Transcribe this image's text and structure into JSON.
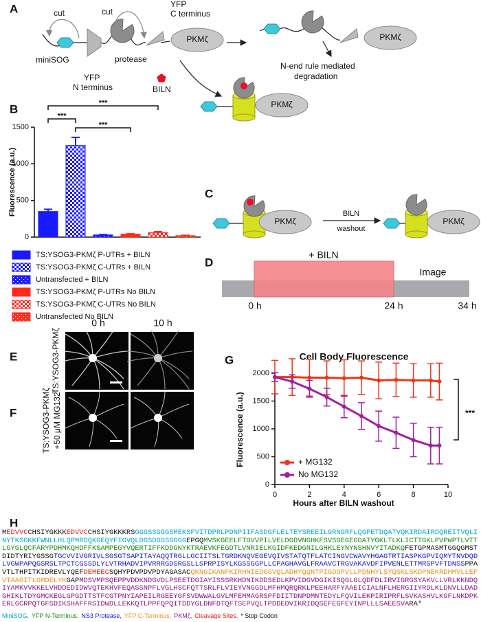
{
  "chart_data": [
    {
      "type": "bar",
      "ylabel": "Fluorescence (a.u.)",
      "ylim": [
        0,
        1500
      ],
      "yticks": [
        0,
        500,
        1000,
        1500
      ],
      "series": [
        {
          "name": "TS:YSOG3-PKMζ P-UTRs + BILN",
          "color": "#1a1aff",
          "pattern": "solid",
          "values": [
            350
          ],
          "errors": [
            30
          ]
        },
        {
          "name": "TS:YSOG3-PKMζ C-UTRs + BILN",
          "color": "#1a1aff",
          "pattern": "checker",
          "values": [
            1250
          ],
          "errors": [
            110
          ]
        },
        {
          "name": "Untransfected + BILN",
          "color": "#1a1aff",
          "pattern": "dots",
          "values": [
            30
          ],
          "errors": [
            5
          ]
        },
        {
          "name": "TS:YSOG3-PKMζ P-UTRs No BILN",
          "color": "#ff2a1a",
          "pattern": "solid",
          "values": [
            40
          ],
          "errors": [
            6
          ]
        },
        {
          "name": "TS:YSOG3-PKMζ C-UTRs No BILN",
          "color": "#ff2a1a",
          "pattern": "checker",
          "values": [
            60
          ],
          "errors": [
            15
          ]
        },
        {
          "name": "Untransfected No BILN",
          "color": "#ff2a1a",
          "pattern": "dots",
          "values": [
            20
          ],
          "errors": [
            5
          ]
        }
      ],
      "annotations": [
        {
          "text": "***",
          "from": 0,
          "to": 1
        },
        {
          "text": "***",
          "from": 1,
          "to": 3
        },
        {
          "text": "***",
          "from": 0,
          "to": 4
        }
      ]
    },
    {
      "type": "line",
      "title": "Cell Body Fluorescence",
      "xlabel": "Hours after BILN washout",
      "ylabel": "Fluorescence (a.u.)",
      "xlim": [
        0,
        10
      ],
      "xticks": [
        0,
        2,
        4,
        6,
        8,
        10
      ],
      "ylim": [
        0,
        2000
      ],
      "yticks": [
        0,
        500,
        1000,
        1500,
        2000
      ],
      "x": [
        0,
        1,
        2,
        3,
        4,
        5,
        6,
        7,
        8,
        9,
        9.5
      ],
      "series": [
        {
          "name": "+ MG132",
          "color": "#f0341a",
          "values": [
            1930,
            1930,
            1920,
            1920,
            1910,
            1920,
            1870,
            1880,
            1870,
            1870,
            1850
          ],
          "errors": [
            300,
            330,
            330,
            300,
            330,
            300,
            330,
            300,
            300,
            300,
            330
          ]
        },
        {
          "name": "No MG132",
          "color": "#a020a0",
          "values": [
            1930,
            1850,
            1720,
            1570,
            1400,
            1230,
            1050,
            930,
            800,
            700,
            700
          ],
          "errors": [
            80,
            120,
            150,
            160,
            200,
            240,
            270,
            280,
            300,
            330,
            330
          ]
        }
      ],
      "annotation": "***"
    }
  ],
  "panels": {
    "A": {
      "label": "A",
      "cut_left": "cut",
      "cut_right": "cut",
      "yfp_c": [
        "YFP",
        "C terminus"
      ],
      "pkmz_1": "PKMζ",
      "minisog": "miniSOG",
      "protease": "protease",
      "yfp_n": [
        "YFP",
        "N terminus"
      ],
      "biln": "BILN",
      "pkmz_2": "PKMζ",
      "degradation": [
        "N-end rule mediated",
        "degradation"
      ],
      "pkmz_3": "PKMζ"
    },
    "B": {
      "label": "B"
    },
    "C": {
      "label": "C",
      "pkmz_1": "PKMζ",
      "arrow": [
        "BILN",
        "washout"
      ],
      "pkmz_2": "PKMζ"
    },
    "D": {
      "label": "D",
      "treatment": "+ BILN",
      "image": "Image",
      "times": [
        "0 h",
        "24 h",
        "34 h"
      ]
    },
    "E": {
      "label": "E",
      "columns": [
        "0 h",
        "10 h"
      ],
      "row": "TS:YSOG3-PKMζ"
    },
    "F": {
      "label": "F",
      "row": [
        "TS:YSOG3-PKMζ",
        "+50 μM MG132"
      ]
    },
    "G": {
      "label": "G"
    },
    "H": {
      "label": "H",
      "sequence": [
        {
          "text": "M",
          "color": "#111111"
        },
        {
          "text": "EDVVC",
          "color": "#e8201a"
        },
        {
          "text": "CHSIYGKKK",
          "color": "#111111"
        },
        {
          "text": "EDVVC",
          "color": "#e8201a"
        },
        {
          "text": "CHSIYGKKKRS",
          "color": "#111111"
        },
        {
          "text": "GGGSSGGGSMEKSFVITDPRLPDNPIIFASDGFLELTEYSREEILGRNGRFLQGPETDQATVQKIRDAIRDQREITVQLINYTKSGKKFWNLLHLQPMRDQKGEQYFIGVQLDGSDGGSGGGG",
          "color": "#00a8d0"
        },
        {
          "text": "EPGQ",
          "color": "#111111"
        },
        {
          "text": "MVSKGEELFTGVVPILVELDGDVNGHKFSVSGEGEGDATYGKLTLKLICTTGKLPVPWPTLVTTLGYGLQCFARYPDHMKQHDFFKSAMPEGYVQERTIFFKDDGNYKTRAEVKFEGDTLVNRIELKGIDFKEDGNILGHKLEYNYNSHNVYITADKQ",
          "color": "#1a8a1a"
        },
        {
          "text": "FETGPMASMTGGQGMSTDIDTYRIYGSSGT",
          "color": "#111111"
        },
        {
          "text": "GCVVIVGRIVLSGSGTSAPITAYAQQTRGLLGCIITSLTGRDKNQVEGEVQIVSTATQTFLATCINGVCWAVYHGAGTRTIASPKGPVIQMYTNVDQDLVGWPAPQGSRSLTPCTCGSSDLYLVTRHADVIPVRRRGDSRGSLLSPRPISYLKGSSGGPLLCPAGHAVGLFRAAVCTRGVAKAVDFIPVENLETTMRSPVFTDNSS",
          "color": "#1a1acc"
        },
        {
          "text": "PPAVTLTHPITKIDREVLYQEF",
          "color": "#111111"
        },
        {
          "text": "DEMEEC",
          "color": "#e8201a"
        },
        {
          "text": "SQHYPDVPDVPDYAGASAC",
          "color": "#111111"
        },
        {
          "text": "QKNGIKANFKIRHNIEDGGVQLADHYQQNTPIGDGPVLLPDNHYLSYQSKLSKDPNEKRDHMVLLEFVTAAGITLGMDELYK",
          "color": "#f0901a"
        },
        {
          "text": "GAP",
          "color": "#111111"
        },
        {
          "text": "MDSVMPSQEPPVDDKNDGVDLPSEETDGIAYISSSRKHDNIKDDSEDLKPVIDGVDGIKISQGLGLQDFDLIRVIGRGSYAKVLLVRLKKNDQIYAMKVVKKELVHDDEDIDWVQTEKHVFEQASSNPFLVGLHSCFQTTSRLFLVIEYVNGGDLMFHMQRQRKLPEEHARFYAAEICIALNFLHERGIIYRDLKLDNVLLDADGHIKLTDYGMCKEGLGPGDTTSTFCGTPNYIAPEILRGEEYGFSVDWWALGVLMFEMMAGRSPFDIITDNPDMNTEDYLFQVILEKPIRIPRFLSVKASHVLKGFLNKDPKERLGCRPQTGFSDIKSHAFFRSIDWDLLEKKQTLPPFQPQITDDYGLDNFDTQFTSEPVQLTPDDEDVIKRIDQSEFEGFEYINPLLLSAEESVA",
          "color": "#8a1a8a"
        },
        {
          "text": "RA*",
          "color": "#111111"
        }
      ],
      "legend": [
        {
          "text": "MiniSOG,",
          "color": "#00a8d0"
        },
        {
          "text": "YFP N-Terminus,",
          "color": "#1a8a1a"
        },
        {
          "text": "NS3 Protease,",
          "color": "#1a1acc"
        },
        {
          "text": "YFP C-Terminus,",
          "color": "#f0901a"
        },
        {
          "text": "PKMζ,",
          "color": "#8a1a8a"
        },
        {
          "text": "Cleavage Sites,",
          "color": "#e8201a"
        },
        {
          "text": "* Stop Codon",
          "color": "#111111"
        }
      ]
    }
  }
}
